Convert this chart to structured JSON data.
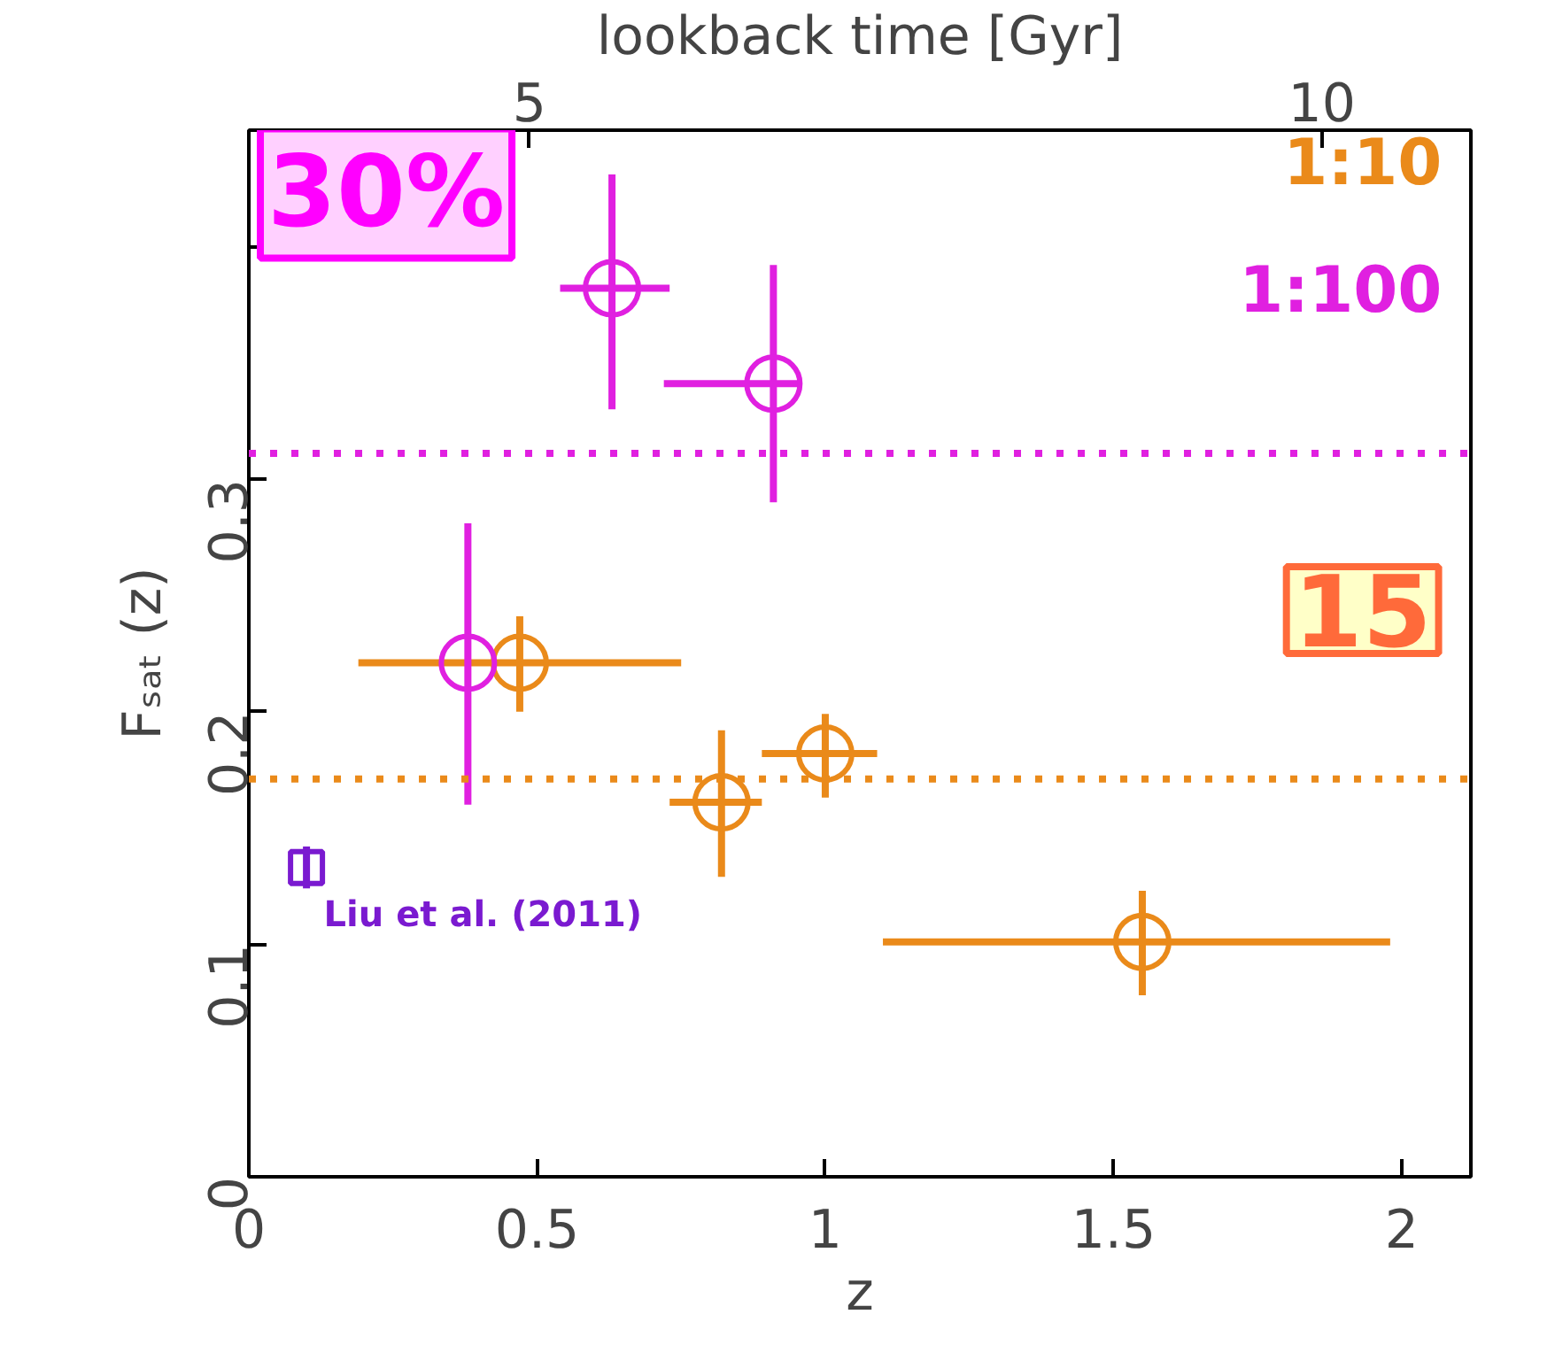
{
  "chart_data": {
    "type": "scatter",
    "xlabel": "z",
    "ylabel": "Fₛₐₜ (z)",
    "x2label": "lookback time [Gyr]",
    "xlim": [
      0,
      2.12
    ],
    "xticks": [
      0,
      0.5,
      1,
      1.5,
      2
    ],
    "ylim": [
      0,
      0.45
    ],
    "yticks": [
      0,
      0.1,
      0.2,
      0.3,
      {
        "value": 0.4,
        "label": null
      }
    ],
    "x2lim": [
      3.23,
      10.94
    ],
    "x2ticks": [
      5,
      10
    ],
    "marker": "circle",
    "grid": false,
    "series": [
      {
        "name": "1:10",
        "color": "#ea8a1a",
        "x": [
          0.47,
          0.82,
          1.0,
          1.55
        ],
        "values": [
          0.221,
          0.161,
          0.182,
          0.101
        ],
        "errors": [
          [
            0.2,
            0.241
          ],
          [
            0.129,
            0.192
          ],
          [
            0.163,
            0.199
          ],
          [
            0.078,
            0.123
          ]
        ],
        "xerrors": [
          [
            0.19,
            0.75
          ],
          [
            0.73,
            0.89
          ],
          [
            0.89,
            1.09
          ],
          [
            1.1,
            1.98
          ]
        ]
      },
      {
        "name": "1:100",
        "color": "#e020e0",
        "x": [
          0.38,
          0.63,
          0.91
        ],
        "values": [
          0.221,
          0.382,
          0.341
        ],
        "errors": [
          [
            0.16,
            0.281
          ],
          [
            0.33,
            0.431
          ],
          [
            0.29,
            0.392
          ]
        ],
        "xerrors": [
          null,
          [
            0.54,
            0.73
          ],
          [
            0.72,
            0.96
          ]
        ]
      },
      {
        "name": "Liu et al. (2011)",
        "color": "#7a1ad0",
        "marker": "square",
        "x": [
          0.1
        ],
        "values": [
          0.133
        ],
        "errors": [
          [
            0.124,
            0.142
          ]
        ]
      }
    ],
    "ref_lines": [
      {
        "axis": "y",
        "value": 0.311,
        "color": "#e020e0",
        "line_style": "dotted"
      },
      {
        "axis": "y",
        "value": 0.171,
        "color": "#ea8a1a",
        "line_style": "dotted"
      }
    ],
    "annotations": [
      "30%",
      "15"
    ]
  }
}
